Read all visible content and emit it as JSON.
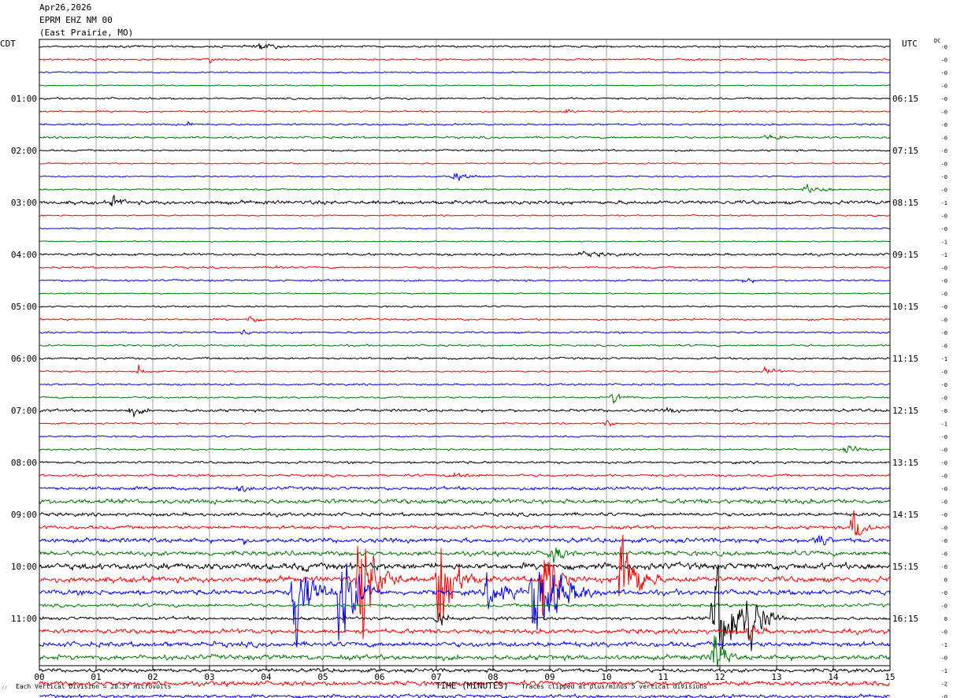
{
  "header": {
    "date": "Apr26,2026",
    "station": "EPRM EHZ NM 00",
    "location": "(East Prairie, MO)"
  },
  "left_zone_label": "CDT",
  "right_zone_label": "UTC",
  "dc_label": "DC",
  "footer": {
    "x_axis_title": "TIME (MINUTES)",
    "scale_note": "Each Vertical Division =   28.57 microvolts",
    "clip_note": "Traces clipped at plus/minus 5 vertical divisions",
    "corner_mark": "⁄⁄"
  },
  "colors": {
    "trace_cycle": [
      "#000000",
      "#ff0000",
      "#0000ff",
      "#007a00"
    ],
    "grid": "#a0a0a0",
    "frame": "#000000"
  },
  "chart_data": {
    "type": "line",
    "title": "EPRM EHZ NM 00",
    "xlabel": "TIME (MINUTES)",
    "ylabel": "",
    "x_range": [
      0,
      15
    ],
    "x_ticks": [
      "00",
      "01",
      "02",
      "03",
      "04",
      "05",
      "06",
      "07",
      "08",
      "09",
      "10",
      "11",
      "12",
      "13",
      "14",
      "15"
    ],
    "traces_per_hour": 4,
    "minutes_per_trace": 15,
    "left_hour_labels": [
      "01:00",
      "02:00",
      "03:00",
      "04:00",
      "05:00",
      "06:00",
      "07:00",
      "08:00",
      "09:00",
      "10:00",
      "11:00"
    ],
    "right_hour_labels": [
      "06:15",
      "07:15",
      "08:15",
      "09:15",
      "10:15",
      "11:15",
      "12:15",
      "13:15",
      "14:15",
      "15:15",
      "16:15"
    ],
    "dc_offsets": [
      "-0",
      "-0",
      "-0",
      "-0",
      "-0",
      "-0",
      "-0",
      "-0",
      "-0",
      "-0",
      "-0",
      "-0",
      "-1",
      "-0",
      "-0",
      "-1",
      "-1",
      "-0",
      "-0",
      "-0",
      "-0",
      "-0",
      "-0",
      "-0",
      "-1",
      "-0",
      "-0",
      "-0",
      "-0",
      "-1",
      "-0",
      "-0",
      "-0",
      "-0",
      "-0",
      "-0",
      "-0",
      "-0",
      "-0",
      "-0",
      "-0",
      "0",
      "-0",
      "-0",
      "0",
      "-0",
      "-1",
      "-0",
      "-1",
      "-2",
      "-0"
    ],
    "noise_levels": [
      0.9,
      0.8,
      0.6,
      0.5,
      0.8,
      0.7,
      0.8,
      0.9,
      0.8,
      0.6,
      0.6,
      0.7,
      1.6,
      0.6,
      0.6,
      0.5,
      1.0,
      0.8,
      0.8,
      0.5,
      0.7,
      0.8,
      0.8,
      0.8,
      0.9,
      0.7,
      0.8,
      0.8,
      1.2,
      0.7,
      0.7,
      0.8,
      1.0,
      1.0,
      1.4,
      2.0,
      1.5,
      1.5,
      2.0,
      2.0,
      2.8,
      2.5,
      2.2,
      1.4,
      1.4,
      2.0,
      2.2,
      2.2,
      1.6,
      2.0,
      1.6
    ],
    "events": [
      {
        "trace": 0,
        "minute": 3.8,
        "amplitude": 4,
        "duration": 1.4
      },
      {
        "trace": 1,
        "minute": 3.0,
        "amplitude": 4,
        "duration": 0.2
      },
      {
        "trace": 5,
        "minute": 9.3,
        "amplitude": 3,
        "duration": 0.4
      },
      {
        "trace": 6,
        "minute": 2.6,
        "amplitude": 4,
        "duration": 0.4
      },
      {
        "trace": 7,
        "minute": 12.8,
        "amplitude": 3,
        "duration": 2.0
      },
      {
        "trace": 10,
        "minute": 7.3,
        "amplitude": 4,
        "duration": 1.2
      },
      {
        "trace": 11,
        "minute": 13.5,
        "amplitude": 4,
        "duration": 1.6
      },
      {
        "trace": 12,
        "minute": 1.3,
        "amplitude": 6,
        "duration": 0.9
      },
      {
        "trace": 16,
        "minute": 9.5,
        "amplitude": 3,
        "duration": 3.0
      },
      {
        "trace": 17,
        "minute": 4.2,
        "amplitude": 3,
        "duration": 0.5
      },
      {
        "trace": 18,
        "minute": 12.4,
        "amplitude": 3,
        "duration": 1.0
      },
      {
        "trace": 21,
        "minute": 3.7,
        "amplitude": 5,
        "duration": 0.5
      },
      {
        "trace": 22,
        "minute": 3.6,
        "amplitude": 4,
        "duration": 0.3
      },
      {
        "trace": 25,
        "minute": 1.75,
        "amplitude": 7,
        "duration": 0.3
      },
      {
        "trace": 25,
        "minute": 12.8,
        "amplitude": 4,
        "duration": 0.8
      },
      {
        "trace": 27,
        "minute": 10.1,
        "amplitude": 6,
        "duration": 0.8
      },
      {
        "trace": 28,
        "minute": 1.6,
        "amplitude": 5,
        "duration": 1.0
      },
      {
        "trace": 28,
        "minute": 11.1,
        "amplitude": 4,
        "duration": 0.6
      },
      {
        "trace": 29,
        "minute": 10.0,
        "amplitude": 4,
        "duration": 0.4
      },
      {
        "trace": 31,
        "minute": 14.2,
        "amplitude": 5,
        "duration": 1.0
      },
      {
        "trace": 33,
        "minute": 7.3,
        "amplitude": 4,
        "duration": 1.3
      },
      {
        "trace": 34,
        "minute": 3.5,
        "amplitude": 4,
        "duration": 1.2
      },
      {
        "trace": 37,
        "minute": 14.35,
        "amplitude": 20,
        "duration": 0.6
      },
      {
        "trace": 38,
        "minute": 13.7,
        "amplitude": 14,
        "duration": 0.5
      },
      {
        "trace": 38,
        "minute": 3.6,
        "amplitude": 4,
        "duration": 0.9
      },
      {
        "trace": 39,
        "minute": 9.0,
        "amplitude": 12,
        "duration": 0.8
      },
      {
        "trace": 40,
        "minute": 4.6,
        "amplitude": 6,
        "duration": 1.0
      },
      {
        "trace": 41,
        "minute": 5.65,
        "amplitude": 60,
        "duration": 0.9
      },
      {
        "trace": 41,
        "minute": 7.05,
        "amplitude": 60,
        "duration": 0.8
      },
      {
        "trace": 41,
        "minute": 8.9,
        "amplitude": 60,
        "duration": 0.6
      },
      {
        "trace": 41,
        "minute": 10.25,
        "amplitude": 60,
        "duration": 0.8
      },
      {
        "trace": 42,
        "minute": 4.5,
        "amplitude": 60,
        "duration": 0.8
      },
      {
        "trace": 42,
        "minute": 5.3,
        "amplitude": 60,
        "duration": 0.8
      },
      {
        "trace": 42,
        "minute": 8.7,
        "amplitude": 50,
        "duration": 1.4
      },
      {
        "trace": 42,
        "minute": 7.9,
        "amplitude": 20,
        "duration": 1.2
      },
      {
        "trace": 44,
        "minute": 11.9,
        "amplitude": 60,
        "duration": 1.2
      },
      {
        "trace": 44,
        "minute": 12.5,
        "amplitude": 40,
        "duration": 0.7
      },
      {
        "trace": 44,
        "minute": 7.0,
        "amplitude": 10,
        "duration": 0.6
      },
      {
        "trace": 45,
        "minute": 12.5,
        "amplitude": 8,
        "duration": 1.0
      },
      {
        "trace": 47,
        "minute": 11.9,
        "amplitude": 30,
        "duration": 0.5
      }
    ]
  }
}
